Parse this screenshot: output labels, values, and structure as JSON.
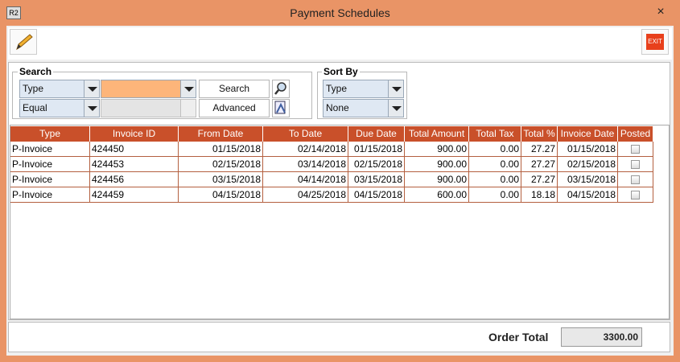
{
  "window": {
    "icon": "R2",
    "title": "Payment Schedules",
    "close": "×"
  },
  "toolbar": {
    "exit": "EXIT"
  },
  "search": {
    "label": "Search",
    "field": "Type",
    "operator": "Equal",
    "search_button": "Search",
    "advanced_button": "Advanced"
  },
  "sort": {
    "label": "Sort By",
    "primary": "Type",
    "secondary": "None"
  },
  "table": {
    "columns": [
      "Type",
      "Invoice ID",
      "From Date",
      "To Date",
      "Due Date",
      "Total Amount",
      "Total Tax",
      "Total %",
      "Invoice Date",
      "Posted"
    ],
    "rows": [
      [
        "P-Invoice",
        "424450",
        "01/15/2018",
        "02/14/2018",
        "01/15/2018",
        "900.00",
        "0.00",
        "27.27",
        "01/15/2018"
      ],
      [
        "P-Invoice",
        "424453",
        "02/15/2018",
        "03/14/2018",
        "02/15/2018",
        "900.00",
        "0.00",
        "27.27",
        "02/15/2018"
      ],
      [
        "P-Invoice",
        "424456",
        "03/15/2018",
        "04/14/2018",
        "03/15/2018",
        "900.00",
        "0.00",
        "27.27",
        "03/15/2018"
      ],
      [
        "P-Invoice",
        "424459",
        "04/15/2018",
        "04/25/2018",
        "04/15/2018",
        "600.00",
        "0.00",
        "18.18",
        "04/15/2018"
      ]
    ]
  },
  "footer": {
    "label": "Order Total",
    "value": "3300.00"
  }
}
